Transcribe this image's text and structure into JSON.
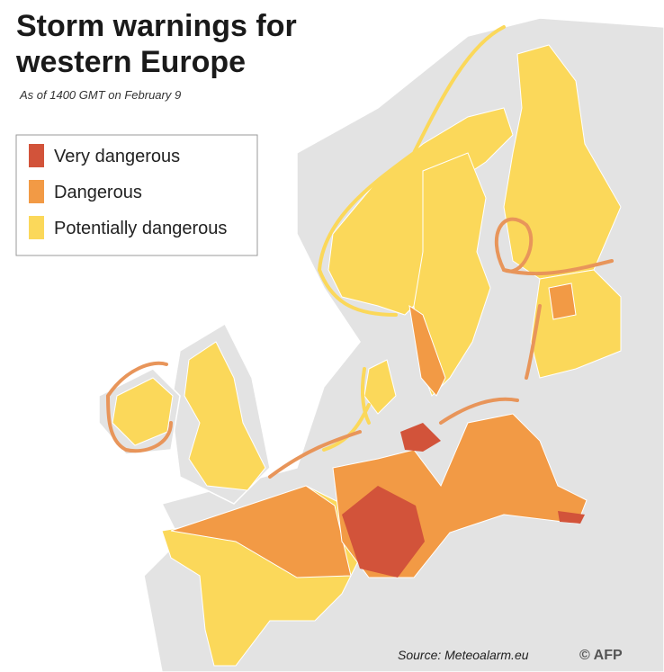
{
  "header": {
    "title_lines": [
      "Storm warnings for",
      "western Europe"
    ],
    "subtitle": "As of 1400 GMT on February 9"
  },
  "legend": {
    "items": [
      {
        "label": "Very dangerous",
        "color": "#d2533a"
      },
      {
        "label": "Dangerous",
        "color": "#f29a45"
      },
      {
        "label": "Potentially dangerous",
        "color": "#fbd85a"
      }
    ]
  },
  "footer": {
    "source": "Source: Meteoalarm.eu",
    "credit": "© AFP"
  }
}
